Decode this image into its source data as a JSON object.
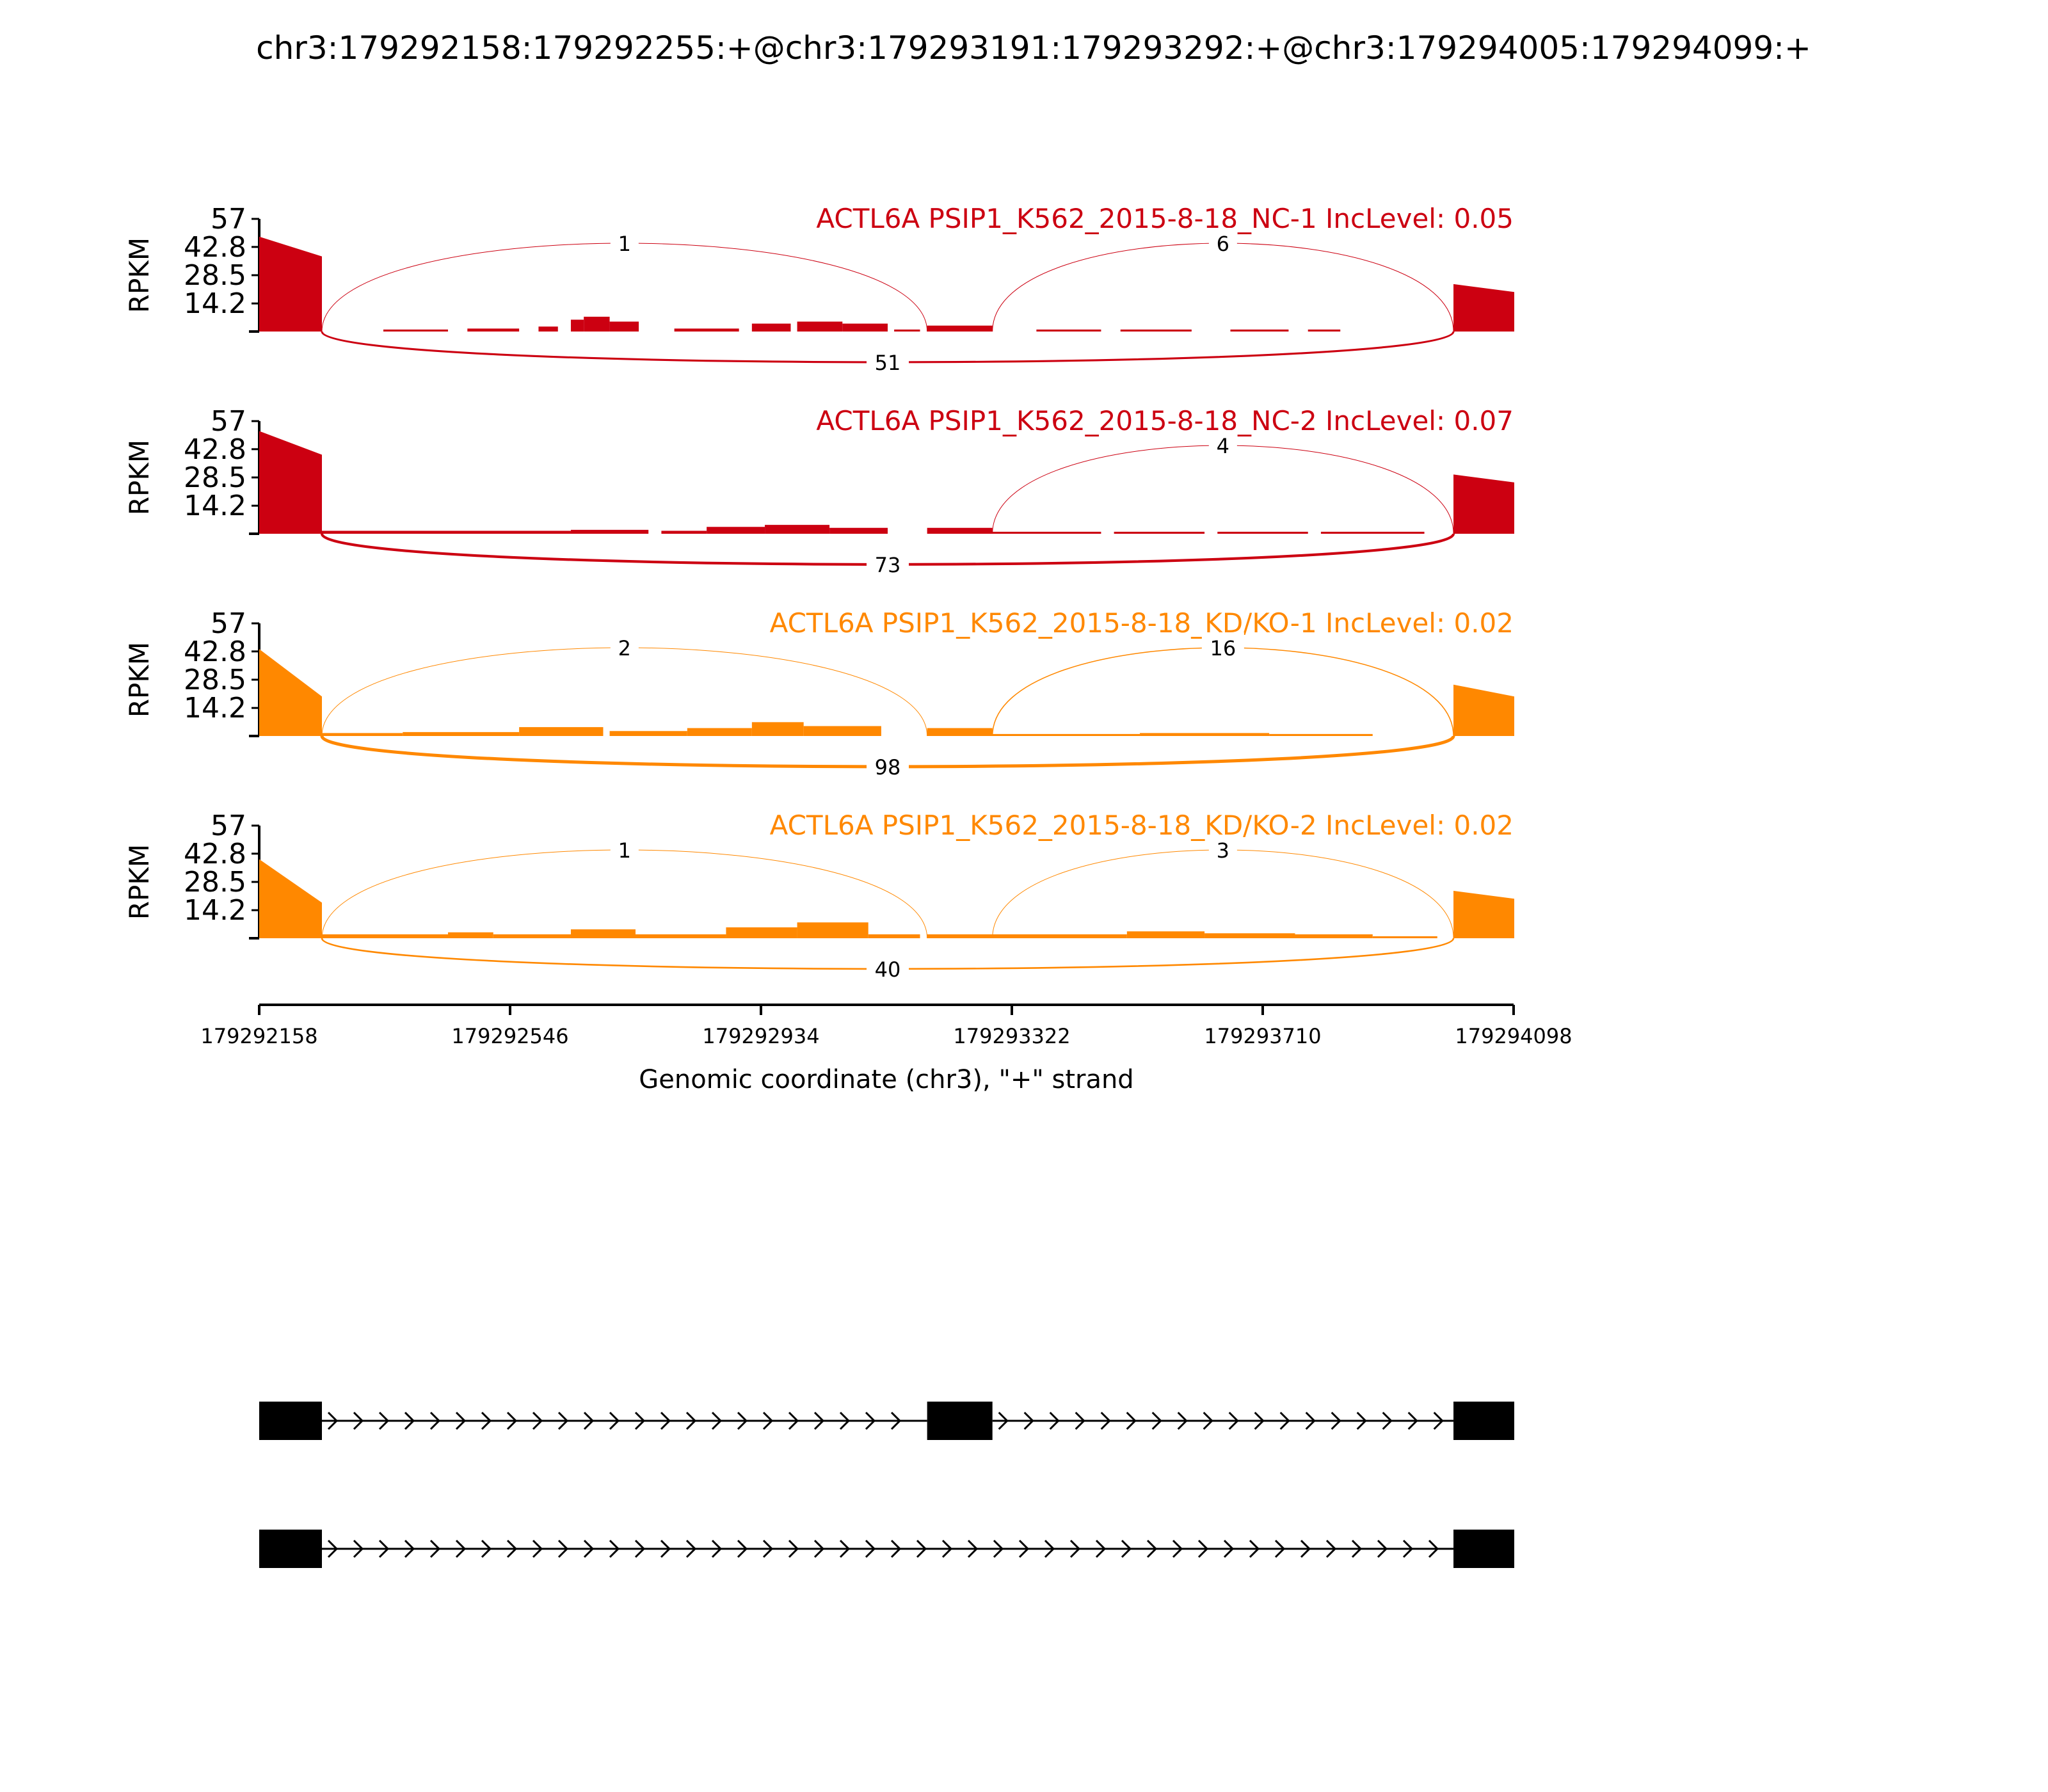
{
  "title": "chr3:179292158:179292255:+@chr3:179293191:179293292:+@chr3:179294005:179294099:+",
  "chart_data": {
    "type": "area",
    "title": "chr3:179292158:179292255:+@chr3:179293191:179293292:+@chr3:179294005:179294099:+",
    "xlabel": "Genomic coordinate (chr3), \"+\" strand",
    "ylabel": "RPKM",
    "xlim": [
      179292158,
      179294098
    ],
    "ylim": [
      0,
      57
    ],
    "x_ticks": [
      "179292158",
      "179292546",
      "179292934",
      "179293322",
      "179293710",
      "179294098"
    ],
    "y_ticks": [
      "57",
      "42.8",
      "28.5",
      "14.2"
    ],
    "exons": [
      {
        "start": 179292158,
        "end": 179292255
      },
      {
        "start": 179293191,
        "end": 179293292
      },
      {
        "start": 179294005,
        "end": 179294099
      }
    ],
    "tracks": [
      {
        "label": "ACTL6A PSIP1_K562_2015-8-18_NC-1 IncLevel: 0.05",
        "color": "#cc0011",
        "segments": [
          {
            "x": [
              179292158,
              179292255
            ],
            "y": [
              48,
              38
            ]
          },
          {
            "x": [
              179292350,
              179292450
            ],
            "y": [
              1,
              1
            ]
          },
          {
            "x": [
              179292480,
              179292560
            ],
            "y": [
              1.5,
              1.5
            ]
          },
          {
            "x": [
              179292590,
              179292620
            ],
            "y": [
              2.5,
              2.5
            ]
          },
          {
            "x": [
              179292640,
              179292660
            ],
            "y": [
              6,
              6
            ]
          },
          {
            "x": [
              179292660,
              179292700
            ],
            "y": [
              7.5,
              7.5
            ]
          },
          {
            "x": [
              179292700,
              179292745
            ],
            "y": [
              5,
              5
            ]
          },
          {
            "x": [
              179292800,
              179292900
            ],
            "y": [
              1.5,
              1.5
            ]
          },
          {
            "x": [
              179292920,
              179292980
            ],
            "y": [
              4,
              4
            ]
          },
          {
            "x": [
              179292990,
              179293060
            ],
            "y": [
              5,
              5
            ]
          },
          {
            "x": [
              179293060,
              179293130
            ],
            "y": [
              4,
              4
            ]
          },
          {
            "x": [
              179293140,
              179293180
            ],
            "y": [
              1,
              1
            ]
          },
          {
            "x": [
              179293191,
              179293292
            ],
            "y": [
              3,
              3
            ]
          },
          {
            "x": [
              179293360,
              179293460
            ],
            "y": [
              1,
              1
            ]
          },
          {
            "x": [
              179293490,
              179293600
            ],
            "y": [
              1,
              1
            ]
          },
          {
            "x": [
              179293660,
              179293750
            ],
            "y": [
              1,
              1
            ]
          },
          {
            "x": [
              179293780,
              179293830
            ],
            "y": [
              1,
              1
            ]
          },
          {
            "x": [
              179294005,
              179294099
            ],
            "y": [
              24,
              20
            ]
          }
        ],
        "junctions": [
          {
            "from": 179292255,
            "to": 179293191,
            "count": "1",
            "side": "above"
          },
          {
            "from": 179293292,
            "to": 179294005,
            "count": "6",
            "side": "above"
          },
          {
            "from": 179292255,
            "to": 179294005,
            "count": "51",
            "side": "below"
          }
        ]
      },
      {
        "label": "ACTL6A PSIP1_K562_2015-8-18_NC-2 IncLevel: 0.07",
        "color": "#cc0011",
        "segments": [
          {
            "x": [
              179292158,
              179292255
            ],
            "y": [
              52,
              40
            ]
          },
          {
            "x": [
              179292255,
              179292400
            ],
            "y": [
              1.5,
              1.5
            ]
          },
          {
            "x": [
              179292400,
              179292640
            ],
            "y": [
              1.5,
              1.5
            ]
          },
          {
            "x": [
              179292640,
              179292760
            ],
            "y": [
              2,
              2
            ]
          },
          {
            "x": [
              179292780,
              179292850
            ],
            "y": [
              1.5,
              1.5
            ]
          },
          {
            "x": [
              179292850,
              179292940
            ],
            "y": [
              3.5,
              3.5
            ]
          },
          {
            "x": [
              179292940,
              179293040
            ],
            "y": [
              4.5,
              4.5
            ]
          },
          {
            "x": [
              179293040,
              179293130
            ],
            "y": [
              3,
              3
            ]
          },
          {
            "x": [
              179293191,
              179293292
            ],
            "y": [
              3,
              3
            ]
          },
          {
            "x": [
              179293292,
              179293460
            ],
            "y": [
              1,
              1
            ]
          },
          {
            "x": [
              179293480,
              179293620
            ],
            "y": [
              1,
              1
            ]
          },
          {
            "x": [
              179293640,
              179293780
            ],
            "y": [
              1,
              1
            ]
          },
          {
            "x": [
              179293800,
              179293960
            ],
            "y": [
              1,
              1
            ]
          },
          {
            "x": [
              179294005,
              179294099
            ],
            "y": [
              30,
              26
            ]
          }
        ],
        "junctions": [
          {
            "from": 179293292,
            "to": 179294005,
            "count": "4",
            "side": "above"
          },
          {
            "from": 179292255,
            "to": 179294005,
            "count": "73",
            "side": "below"
          }
        ]
      },
      {
        "label": "ACTL6A PSIP1_K562_2015-8-18_KD/KO-1 IncLevel: 0.02",
        "color": "#ff8800",
        "segments": [
          {
            "x": [
              179292158,
              179292255
            ],
            "y": [
              44,
              20
            ]
          },
          {
            "x": [
              179292255,
              179292380
            ],
            "y": [
              1.5,
              1.5
            ]
          },
          {
            "x": [
              179292380,
              179292560
            ],
            "y": [
              2,
              2
            ]
          },
          {
            "x": [
              179292560,
              179292690
            ],
            "y": [
              4.5,
              4.5
            ]
          },
          {
            "x": [
              179292700,
              179292820
            ],
            "y": [
              2.5,
              2.5
            ]
          },
          {
            "x": [
              179292820,
              179292920
            ],
            "y": [
              4,
              4
            ]
          },
          {
            "x": [
              179292920,
              179293000
            ],
            "y": [
              7,
              7
            ]
          },
          {
            "x": [
              179293000,
              179293120
            ],
            "y": [
              5,
              5
            ]
          },
          {
            "x": [
              179293191,
              179293292
            ],
            "y": [
              4,
              4
            ]
          },
          {
            "x": [
              179293292,
              179293520
            ],
            "y": [
              1,
              1
            ]
          },
          {
            "x": [
              179293520,
              179293720
            ],
            "y": [
              1.5,
              1.5
            ]
          },
          {
            "x": [
              179293720,
              179293880
            ],
            "y": [
              1,
              1
            ]
          },
          {
            "x": [
              179294005,
              179294099
            ],
            "y": [
              26,
              20
            ]
          }
        ],
        "junctions": [
          {
            "from": 179292255,
            "to": 179293191,
            "count": "2",
            "side": "above"
          },
          {
            "from": 179293292,
            "to": 179294005,
            "count": "16",
            "side": "above"
          },
          {
            "from": 179292255,
            "to": 179294005,
            "count": "98",
            "side": "below"
          }
        ]
      },
      {
        "label": "ACTL6A PSIP1_K562_2015-8-18_KD/KO-2 IncLevel: 0.02",
        "color": "#ff8800",
        "segments": [
          {
            "x": [
              179292158,
              179292255
            ],
            "y": [
              40,
              18
            ]
          },
          {
            "x": [
              179292255,
              179292450
            ],
            "y": [
              2,
              2
            ]
          },
          {
            "x": [
              179292450,
              179292520
            ],
            "y": [
              3,
              3
            ]
          },
          {
            "x": [
              179292520,
              179292640
            ],
            "y": [
              2,
              2
            ]
          },
          {
            "x": [
              179292640,
              179292740
            ],
            "y": [
              4.5,
              4.5
            ]
          },
          {
            "x": [
              179292740,
              179292880
            ],
            "y": [
              2,
              2
            ]
          },
          {
            "x": [
              179292880,
              179292990
            ],
            "y": [
              5.5,
              5.5
            ]
          },
          {
            "x": [
              179292990,
              179293100
            ],
            "y": [
              8,
              8
            ]
          },
          {
            "x": [
              179293100,
              179293180
            ],
            "y": [
              2,
              2
            ]
          },
          {
            "x": [
              179293191,
              179293292
            ],
            "y": [
              2,
              2
            ]
          },
          {
            "x": [
              179293292,
              179293500
            ],
            "y": [
              2,
              2
            ]
          },
          {
            "x": [
              179293500,
              179293620
            ],
            "y": [
              3.5,
              3.5
            ]
          },
          {
            "x": [
              179293620,
              179293760
            ],
            "y": [
              2.5,
              2.5
            ]
          },
          {
            "x": [
              179293760,
              179293880
            ],
            "y": [
              2,
              2
            ]
          },
          {
            "x": [
              179293880,
              179293980
            ],
            "y": [
              1,
              1
            ]
          },
          {
            "x": [
              179294005,
              179294099
            ],
            "y": [
              24,
              20
            ]
          }
        ],
        "junctions": [
          {
            "from": 179292255,
            "to": 179293191,
            "count": "1",
            "side": "above"
          },
          {
            "from": 179293292,
            "to": 179294005,
            "count": "3",
            "side": "above"
          },
          {
            "from": 179292255,
            "to": 179294005,
            "count": "40",
            "side": "below"
          }
        ]
      }
    ],
    "isoforms": [
      {
        "exons": [
          [
            179292158,
            179292255
          ],
          [
            179293191,
            179293292
          ],
          [
            179294005,
            179294099
          ]
        ]
      },
      {
        "exons": [
          [
            179292158,
            179292255
          ],
          [
            179294005,
            179294099
          ]
        ]
      }
    ]
  }
}
